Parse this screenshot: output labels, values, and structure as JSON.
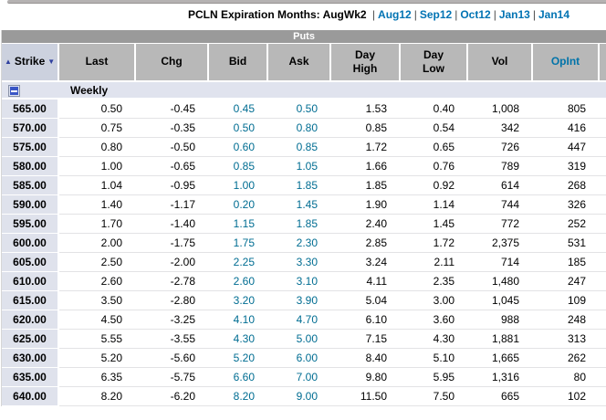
{
  "page": {
    "title_prefix": "PCLN Expiration Months:",
    "selected_month": "AugWk2",
    "separator": "|",
    "months": [
      "Aug12",
      "Sep12",
      "Oct12",
      "Jan13",
      "Jan14"
    ]
  },
  "icons": {
    "sort_asc": "▲",
    "sort_desc": "▼",
    "collapse_minus": "collapse-minus-button"
  },
  "table": {
    "section_title": "Puts",
    "group_label": "Weekly",
    "columns": [
      "Strike",
      "Last",
      "Chg",
      "Bid",
      "Ask",
      "Day\nHigh",
      "Day\nLow",
      "Vol",
      "OpInt"
    ],
    "rows": [
      [
        "565.00",
        "0.50",
        "-0.45",
        "0.45",
        "0.50",
        "1.53",
        "0.40",
        "1,008",
        "805"
      ],
      [
        "570.00",
        "0.75",
        "-0.35",
        "0.50",
        "0.80",
        "0.85",
        "0.54",
        "342",
        "416"
      ],
      [
        "575.00",
        "0.80",
        "-0.50",
        "0.60",
        "0.85",
        "1.72",
        "0.65",
        "726",
        "447"
      ],
      [
        "580.00",
        "1.00",
        "-0.65",
        "0.85",
        "1.05",
        "1.66",
        "0.76",
        "789",
        "319"
      ],
      [
        "585.00",
        "1.04",
        "-0.95",
        "1.00",
        "1.85",
        "1.85",
        "0.92",
        "614",
        "268"
      ],
      [
        "590.00",
        "1.40",
        "-1.17",
        "0.20",
        "1.45",
        "1.90",
        "1.14",
        "744",
        "326"
      ],
      [
        "595.00",
        "1.70",
        "-1.40",
        "1.15",
        "1.85",
        "2.40",
        "1.45",
        "772",
        "252"
      ],
      [
        "600.00",
        "2.00",
        "-1.75",
        "1.75",
        "2.30",
        "2.85",
        "1.72",
        "2,375",
        "531"
      ],
      [
        "605.00",
        "2.50",
        "-2.00",
        "2.25",
        "3.30",
        "3.24",
        "2.11",
        "714",
        "185"
      ],
      [
        "610.00",
        "2.60",
        "-2.78",
        "2.60",
        "3.10",
        "4.11",
        "2.35",
        "1,480",
        "247"
      ],
      [
        "615.00",
        "3.50",
        "-2.80",
        "3.20",
        "3.90",
        "5.04",
        "3.00",
        "1,045",
        "109"
      ],
      [
        "620.00",
        "4.50",
        "-3.25",
        "4.10",
        "4.70",
        "6.10",
        "3.60",
        "988",
        "248"
      ],
      [
        "625.00",
        "5.55",
        "-3.55",
        "4.30",
        "5.00",
        "7.15",
        "4.30",
        "1,881",
        "313"
      ],
      [
        "630.00",
        "5.20",
        "-5.60",
        "5.20",
        "6.00",
        "8.40",
        "5.10",
        "1,665",
        "262"
      ],
      [
        "635.00",
        "6.35",
        "-5.75",
        "6.60",
        "7.00",
        "9.80",
        "5.95",
        "1,316",
        "80"
      ],
      [
        "640.00",
        "8.20",
        "-6.20",
        "8.20",
        "9.00",
        "11.50",
        "7.50",
        "665",
        "102"
      ]
    ]
  },
  "colors": {
    "link_blue": "#0073b3",
    "bid_ask_blue": "#006d92",
    "opint_blue": "#0073a9",
    "puts_bar_bg": "#9a9a9a",
    "header_bg": "#b8b8b8",
    "strike_header_bg": "#ccd1de",
    "strike_cell_bg": "#dfe2ec",
    "group_row_bg": "#e0e3ee",
    "collapse_button_blue": "#3a56c5",
    "sort_arrow_navy": "#2e3f9e"
  }
}
